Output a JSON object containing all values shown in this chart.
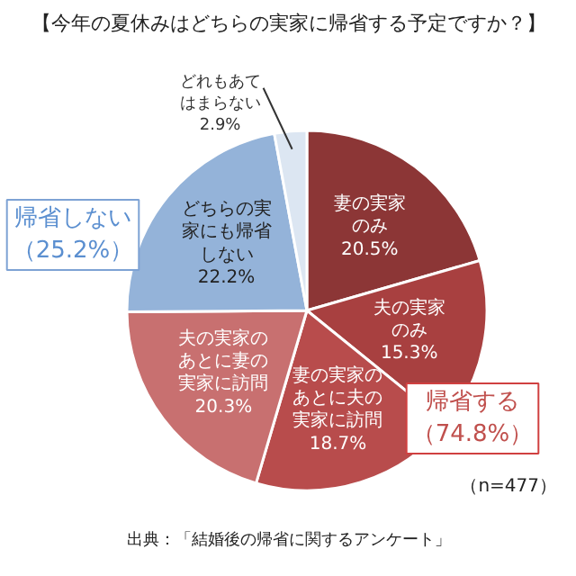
{
  "chart_data": {
    "type": "pie",
    "title": "【今年の夏休みはどちらの実家に帰省する予定ですか？】",
    "categories": [
      "妻の実家のみ",
      "夫の実家のみ",
      "妻の実家のあとに夫の実家に訪問",
      "夫の実家のあとに妻の実家に訪問",
      "どちらの実家にも帰省しない",
      "どれもあてはまらない"
    ],
    "values": [
      20.5,
      15.3,
      18.7,
      20.3,
      22.2,
      2.9
    ],
    "value_labels": [
      "20.5%",
      "15.3%",
      "18.7%",
      "20.3%",
      "22.2%",
      "2.9%"
    ],
    "colors": [
      "#8c3636",
      "#a84040",
      "#b84c4c",
      "#c87070",
      "#94b3d9",
      "#dce6f2"
    ],
    "annotations": [
      "帰省しない（25.2%）",
      "帰省する（74.8%）",
      "（n=477）",
      "出典：「結婚後の帰省に関するアンケート」"
    ]
  }
}
